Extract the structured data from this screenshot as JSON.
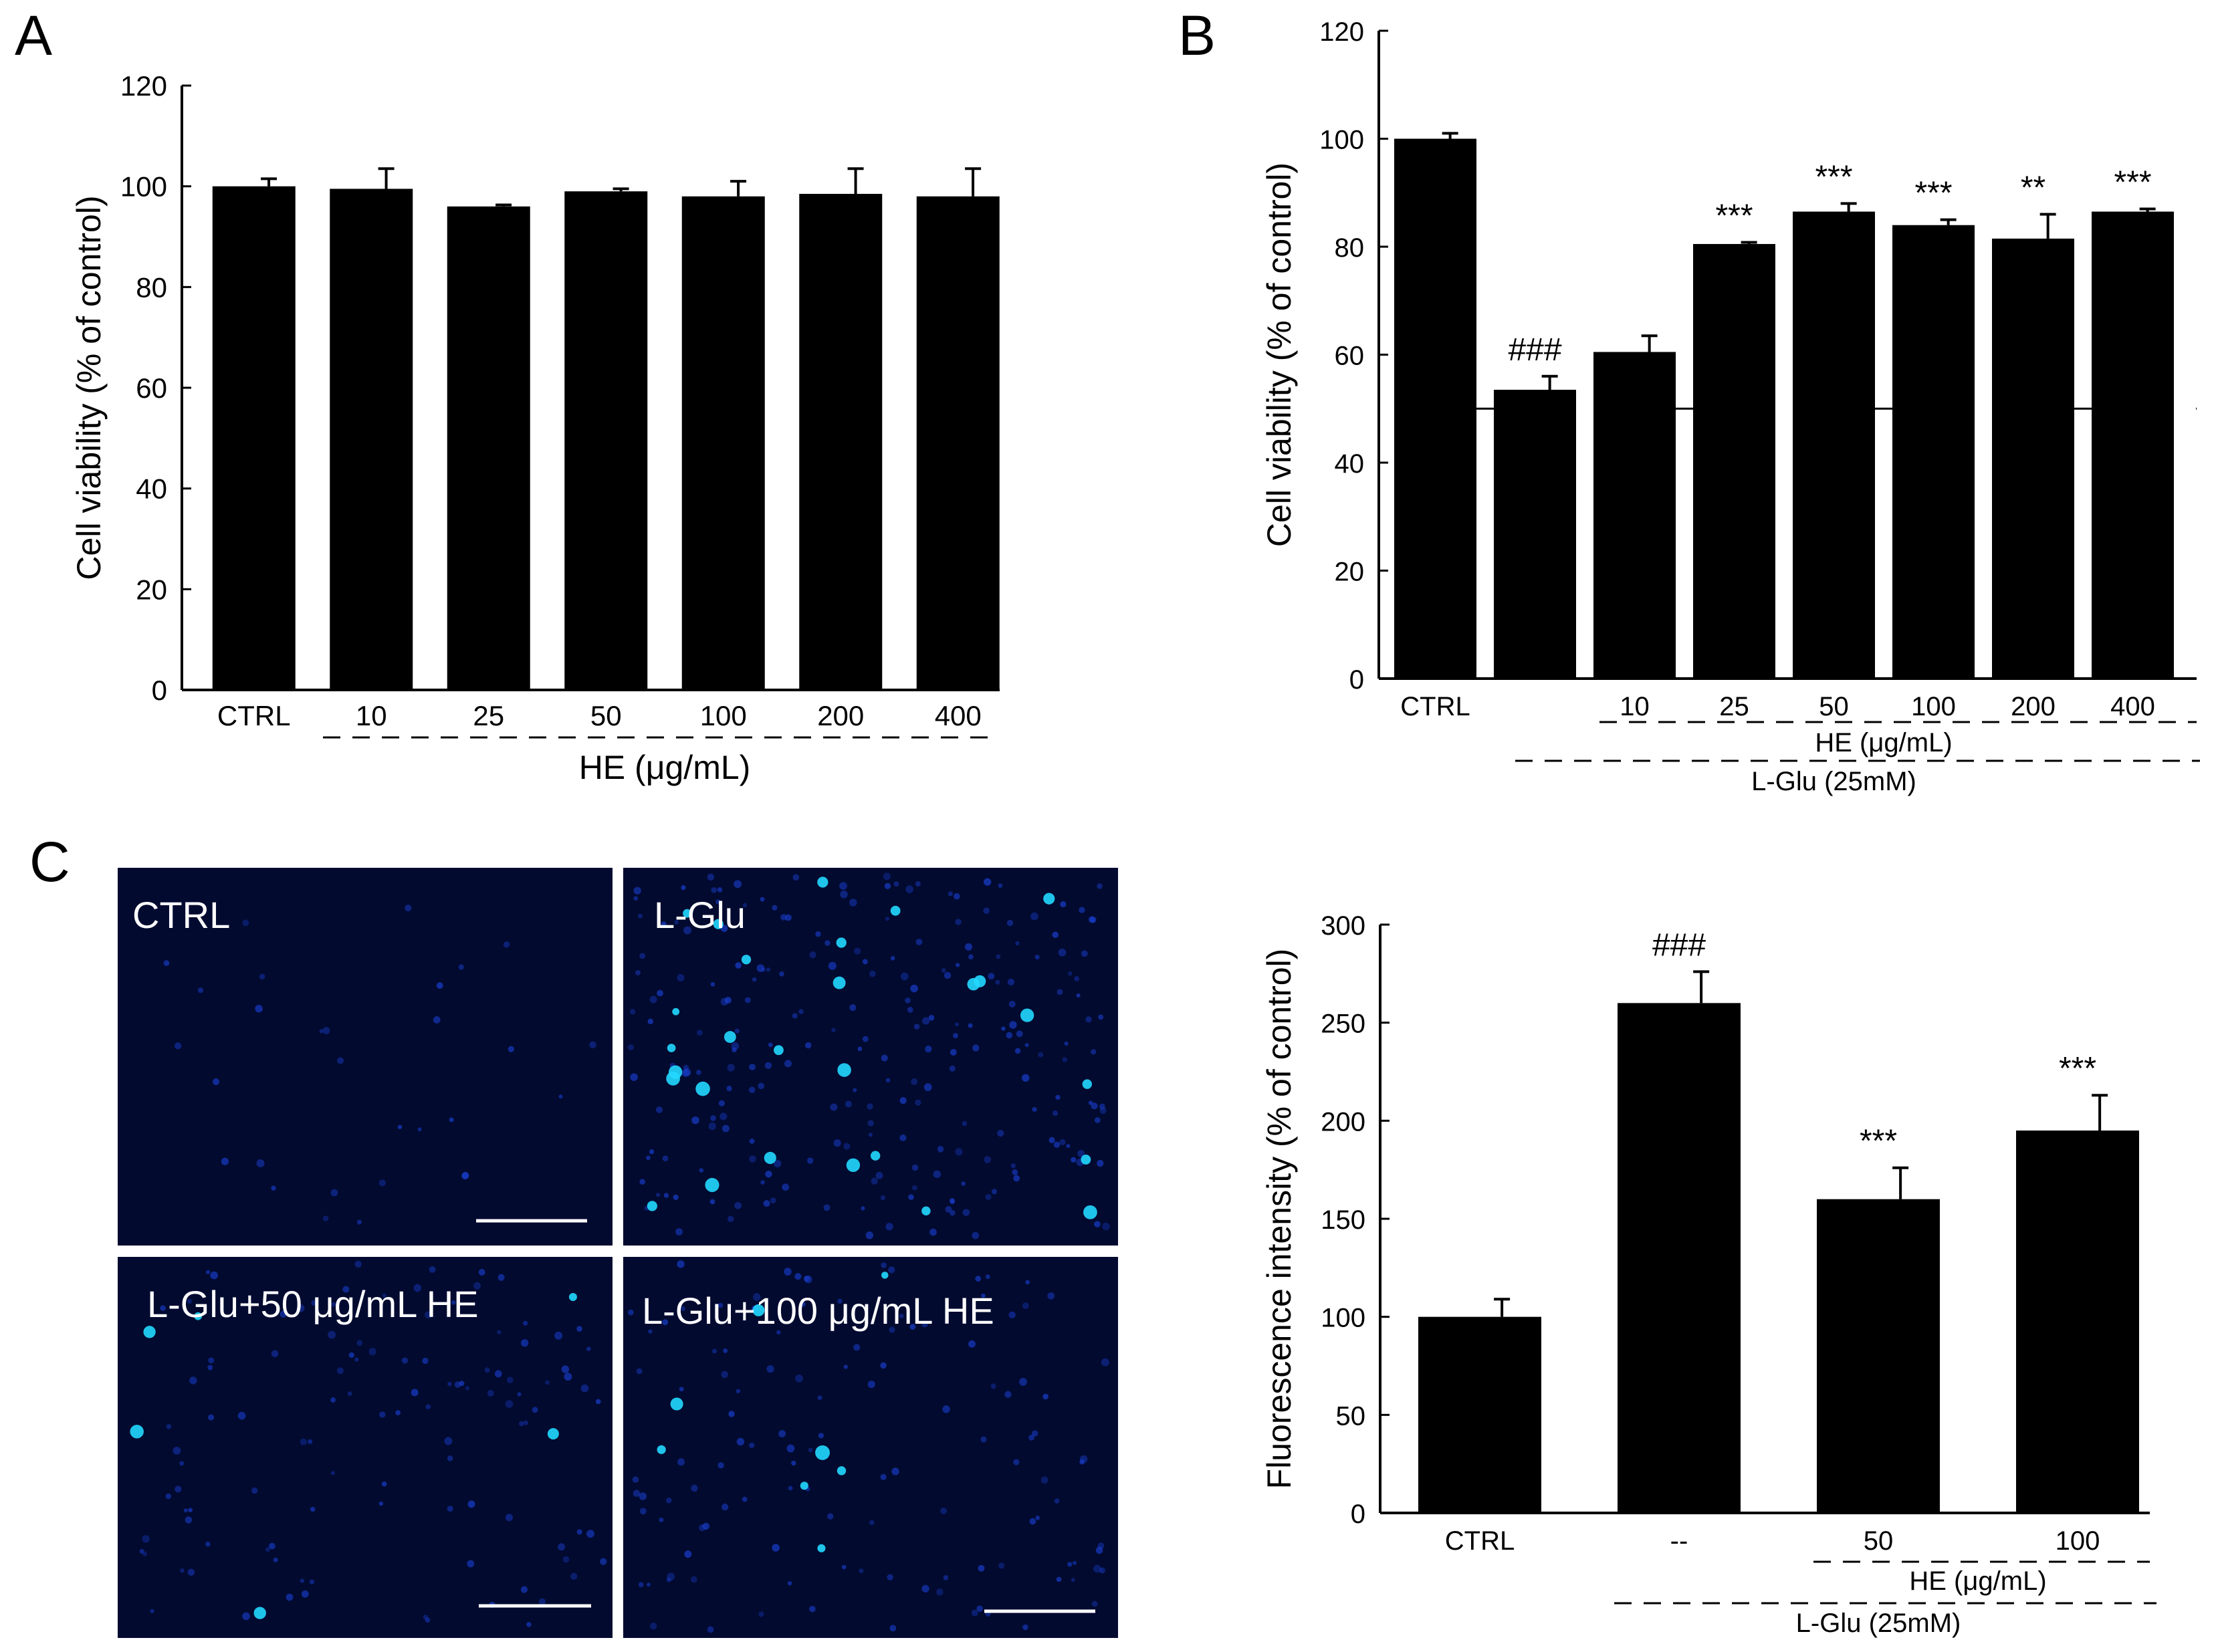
{
  "panels": {
    "A": "A",
    "B": "B",
    "C": "C"
  },
  "micrographs": [
    {
      "label": "CTRL",
      "spots": 30,
      "bright": 0
    },
    {
      "label": "L-Glu",
      "spots": 230,
      "bright": 28
    },
    {
      "label": "L-Glu+50 μg/mL HE",
      "spots": 110,
      "bright": 6
    },
    {
      "label": "L-Glu+100 μg/mL HE",
      "spots": 120,
      "bright": 8
    }
  ],
  "colors": {
    "bar": "#000000",
    "micrograph_bg": "#020a30",
    "nucleus_dim": "#1a3fd0",
    "nucleus_bright": "#22d8ff"
  },
  "chart_data": [
    {
      "panel": "A",
      "type": "bar",
      "ylabel": "Cell viability (% of control)",
      "xlabel": "",
      "ylim": [
        0,
        120
      ],
      "yticks": [
        0,
        20,
        40,
        60,
        80,
        100,
        120
      ],
      "categories": [
        "CTRL",
        "10",
        "25",
        "50",
        "100",
        "200",
        "400"
      ],
      "values": [
        100,
        99.5,
        96,
        99,
        98,
        98.5,
        98
      ],
      "errors": [
        1.5,
        4,
        0.3,
        0.5,
        3,
        5,
        5.5
      ],
      "annotations": [
        "",
        "",
        "",
        "",
        "",
        "",
        ""
      ],
      "group_labels": [
        {
          "text": "HE (μg/mL)",
          "from": 1,
          "to": 6
        }
      ]
    },
    {
      "panel": "B",
      "type": "bar",
      "ylabel": "Cell viability (% of control)",
      "xlabel": "",
      "ylim": [
        0,
        120
      ],
      "yticks": [
        0,
        20,
        40,
        60,
        80,
        100,
        120
      ],
      "categories": [
        "CTRL",
        "",
        "10",
        "25",
        "50",
        "100",
        "200",
        "400"
      ],
      "values": [
        100,
        53.5,
        60.5,
        80.5,
        86.5,
        84,
        81.5,
        86.5
      ],
      "errors": [
        1,
        2.5,
        3,
        0.3,
        1.5,
        1,
        4.5,
        0.5
      ],
      "annotations": [
        "",
        "###",
        "",
        "***",
        "***",
        "***",
        "**",
        "***"
      ],
      "reference_line": 50,
      "group_labels": [
        {
          "text": "HE (μg/mL)",
          "from": 2,
          "to": 7
        },
        {
          "text": "L-Glu (25mM)",
          "from": 1,
          "to": 7
        }
      ]
    },
    {
      "panel": "C",
      "type": "bar",
      "ylabel": "Fluorescence intensity (% of control)",
      "xlabel": "",
      "ylim": [
        0,
        300
      ],
      "yticks": [
        0,
        50,
        100,
        150,
        200,
        250,
        300
      ],
      "categories": [
        "CTRL",
        "--",
        "50",
        "100"
      ],
      "values": [
        100,
        260,
        160,
        195
      ],
      "errors": [
        9,
        16,
        16,
        18
      ],
      "annotations": [
        "",
        "###",
        "***",
        "***"
      ],
      "group_labels": [
        {
          "text": "HE (μg/mL)",
          "from": 2,
          "to": 3
        },
        {
          "text": "L-Glu (25mM)",
          "from": 1,
          "to": 3
        }
      ]
    }
  ]
}
